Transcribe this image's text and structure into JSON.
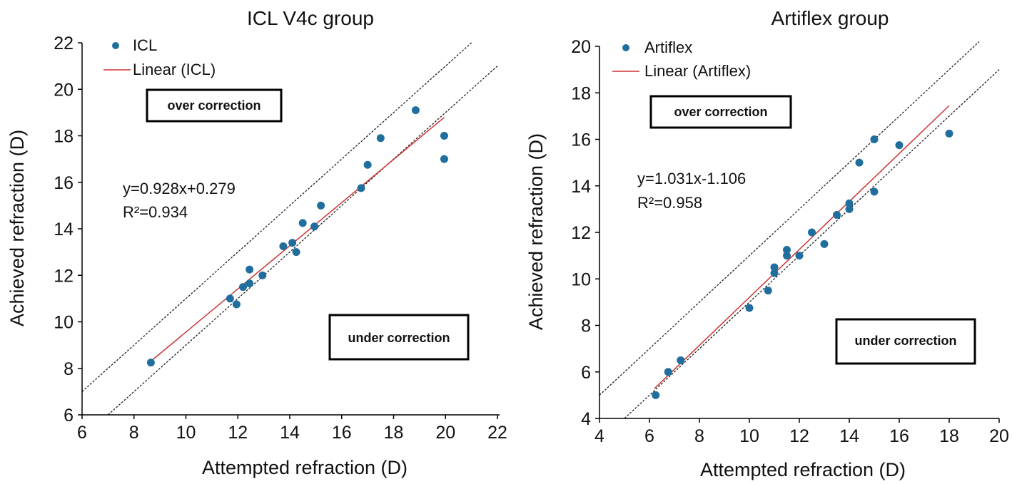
{
  "colors": {
    "point": "#1f6e9e",
    "fit": "#cc3333",
    "guide": "#222222",
    "axis": "#000000"
  },
  "chart_data": [
    {
      "type": "scatter",
      "title": "ICL V4c group",
      "xlabel": "Attempted refraction (D)",
      "ylabel": "Achieved refraction (D)",
      "xlim": [
        6,
        22
      ],
      "ylim": [
        6,
        22
      ],
      "x_ticks": [
        "6",
        "8",
        "10",
        "12",
        "14",
        "16",
        "18",
        "20",
        "22"
      ],
      "y_ticks": [
        "6",
        "8",
        "10",
        "12",
        "14",
        "16",
        "18",
        "20",
        "22"
      ],
      "grid": false,
      "legend_position": "top-left",
      "series": [
        {
          "name": "ICL",
          "kind": "points",
          "points": [
            [
              8.65,
              8.25
            ],
            [
              11.7,
              11.0
            ],
            [
              11.95,
              10.75
            ],
            [
              12.2,
              11.5
            ],
            [
              12.45,
              11.65
            ],
            [
              12.45,
              12.25
            ],
            [
              12.95,
              12.0
            ],
            [
              13.75,
              13.25
            ],
            [
              14.1,
              13.4
            ],
            [
              14.25,
              13.0
            ],
            [
              14.5,
              14.25
            ],
            [
              14.95,
              14.1
            ],
            [
              15.2,
              15.0
            ],
            [
              16.75,
              15.75
            ],
            [
              17.0,
              16.75
            ],
            [
              17.5,
              17.9
            ],
            [
              18.85,
              19.1
            ],
            [
              19.95,
              18.0
            ],
            [
              19.95,
              17.0
            ]
          ]
        },
        {
          "name": "Linear (ICL)",
          "kind": "fit",
          "slope": 0.928,
          "intercept": 0.279,
          "x_range": [
            8.65,
            19.95
          ]
        }
      ],
      "guide_lines": [
        {
          "slope": 1,
          "intercept": 1,
          "x_range": [
            6,
            21.0
          ]
        },
        {
          "slope": 1,
          "intercept": -1,
          "x_range": [
            7,
            22.0
          ]
        }
      ],
      "equation": "y=0.928x+0.279",
      "r2": "R²=0.934",
      "annotations": [
        "over correction",
        "under correction"
      ]
    },
    {
      "type": "scatter",
      "title": "Artiflex group",
      "xlabel": "Attempted refraction (D)",
      "ylabel": "Achieved refraction (D)",
      "xlim": [
        4,
        20
      ],
      "ylim": [
        4,
        20
      ],
      "x_ticks": [
        "4",
        "6",
        "8",
        "10",
        "12",
        "14",
        "16",
        "18",
        "20"
      ],
      "y_ticks": [
        "4",
        "6",
        "8",
        "10",
        "12",
        "14",
        "16",
        "18",
        "20"
      ],
      "grid": false,
      "legend_position": "top-left",
      "series": [
        {
          "name": "Artiflex",
          "kind": "points",
          "points": [
            [
              6.25,
              5.0
            ],
            [
              6.75,
              6.0
            ],
            [
              7.25,
              6.5
            ],
            [
              10.0,
              8.75
            ],
            [
              10.75,
              9.5
            ],
            [
              11.0,
              10.25
            ],
            [
              11.0,
              10.5
            ],
            [
              11.5,
              11.0
            ],
            [
              11.5,
              11.25
            ],
            [
              12.0,
              11.0
            ],
            [
              12.5,
              12.0
            ],
            [
              13.0,
              11.5
            ],
            [
              13.5,
              12.75
            ],
            [
              14.0,
              13.0
            ],
            [
              14.0,
              13.25
            ],
            [
              14.4,
              15.0
            ],
            [
              15.0,
              16.0
            ],
            [
              15.0,
              13.75
            ],
            [
              16.0,
              15.75
            ],
            [
              18.0,
              16.25
            ]
          ]
        },
        {
          "name": "Linear (Artiflex)",
          "kind": "fit",
          "slope": 1.031,
          "intercept": -1.106,
          "x_range": [
            6.2,
            18.0
          ]
        }
      ],
      "guide_lines": [
        {
          "slope": 1,
          "intercept": 1,
          "x_range": [
            4,
            19.2
          ]
        },
        {
          "slope": 1,
          "intercept": -1,
          "x_range": [
            5,
            20.0
          ]
        }
      ],
      "equation": "y=1.031x-1.106",
      "r2": "R²=0.958",
      "annotations": [
        "over correction",
        "under correction"
      ]
    }
  ]
}
